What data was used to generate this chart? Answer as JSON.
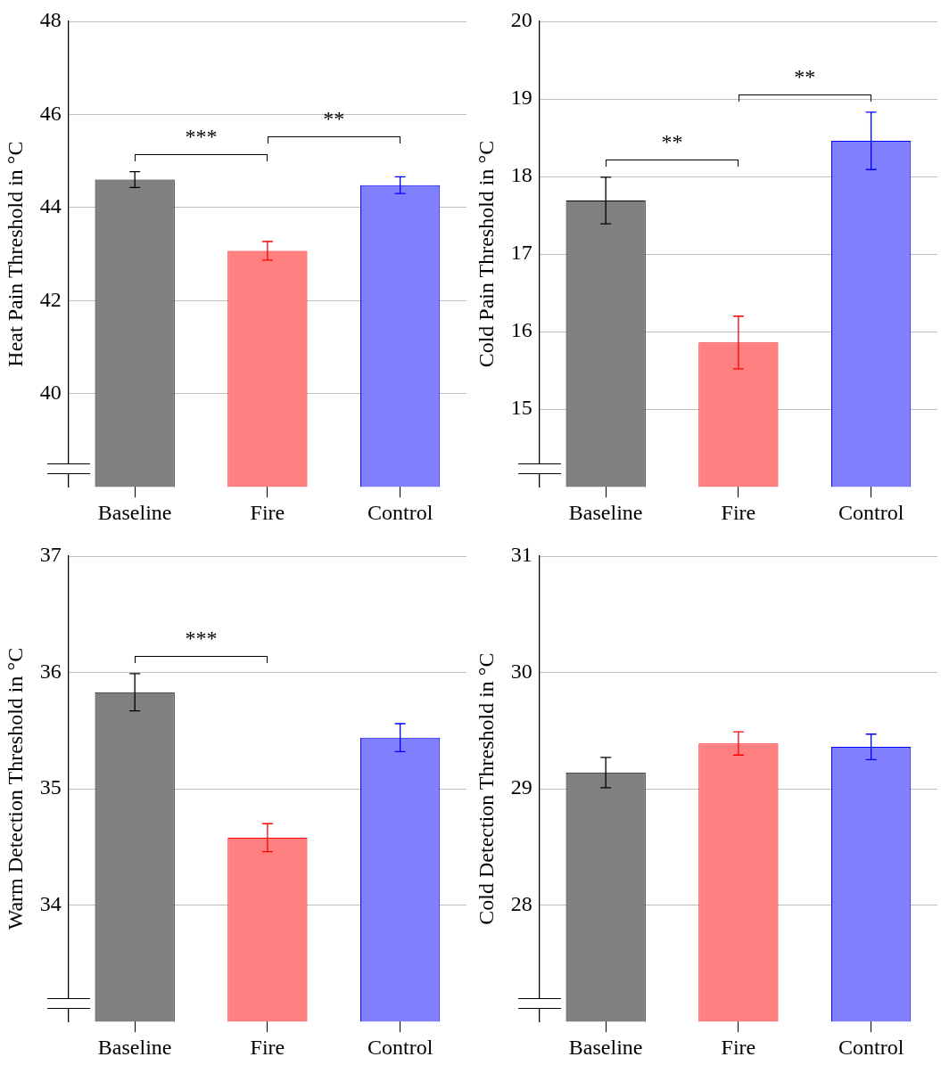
{
  "chart_data": [
    {
      "type": "bar",
      "categories": [
        "Baseline",
        "Fire",
        "Control"
      ],
      "values": [
        44.6,
        43.07,
        44.48
      ],
      "colors": [
        "#808080",
        "#ff8080",
        "#8080ff"
      ],
      "errors": [
        0.17,
        0.2,
        0.18
      ],
      "ylim": [
        38,
        48
      ],
      "yticks": [
        40,
        42,
        44,
        46,
        48
      ],
      "ylabel": "Heat Pain Threshold in °C",
      "grid": "y",
      "annotations": [
        "***",
        "**"
      ]
    },
    {
      "type": "bar",
      "categories": [
        "Baseline",
        "Fire",
        "Control"
      ],
      "values": [
        17.69,
        15.86,
        18.46
      ],
      "colors": [
        "#808080",
        "#ff8080",
        "#8080ff"
      ],
      "errors": [
        0.3,
        0.34,
        0.37
      ],
      "ylim": [
        14,
        20
      ],
      "yticks": [
        15,
        16,
        17,
        18,
        19,
        20
      ],
      "ylabel": "Cold Pain Threshold in °C",
      "grid": "y",
      "annotations": [
        "**",
        "**"
      ]
    },
    {
      "type": "bar",
      "categories": [
        "Baseline",
        "Fire",
        "Control"
      ],
      "values": [
        35.83,
        34.58,
        35.44
      ],
      "colors": [
        "#808080",
        "#ff8080",
        "#8080ff"
      ],
      "errors": [
        0.16,
        0.12,
        0.12
      ],
      "ylim": [
        33,
        37
      ],
      "yticks": [
        34,
        35,
        36,
        37
      ],
      "ylabel": "Warm Detection Threshold in °C",
      "grid": "y",
      "annotations": [
        "***"
      ]
    },
    {
      "type": "bar",
      "categories": [
        "Baseline",
        "Fire",
        "Control"
      ],
      "values": [
        29.14,
        29.39,
        29.36
      ],
      "colors": [
        "#808080",
        "#ff8080",
        "#8080ff"
      ],
      "errors": [
        0.13,
        0.1,
        0.11
      ],
      "ylim": [
        27,
        31
      ],
      "yticks": [
        28,
        29,
        30,
        31
      ],
      "ylabel": "Cold Detection Threshold in °C",
      "grid": "y"
    }
  ]
}
